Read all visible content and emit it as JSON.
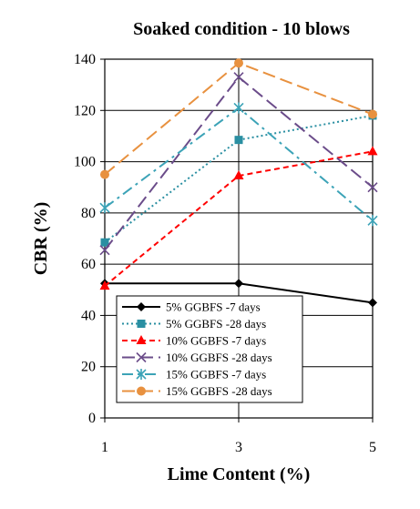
{
  "chart_data": {
    "type": "line",
    "title": "Soaked condition  - 10 blows",
    "xlabel": "Lime Content (%)",
    "ylabel": "CBR (%)",
    "x": [
      1,
      3,
      5
    ],
    "xlim": [
      1,
      5
    ],
    "ylim": [
      0,
      140
    ],
    "xticks": [
      "1",
      "3",
      "5"
    ],
    "yticks": [
      "0",
      "20",
      "40",
      "60",
      "80",
      "100",
      "120",
      "140"
    ],
    "grid": true,
    "legend_position": "lower-left",
    "series": [
      {
        "name": "5% GGBFS -7 days",
        "values": [
          52.5,
          52.5,
          45
        ],
        "color": "#000000",
        "dash": "solid",
        "marker": "diamond"
      },
      {
        "name": "5% GGBFS -28 days",
        "values": [
          68.5,
          108.5,
          118
        ],
        "color": "#2a8fa2",
        "dash": "dotted",
        "marker": "square"
      },
      {
        "name": "10% GGBFS -7 days",
        "values": [
          51.5,
          94.5,
          104
        ],
        "color": "#ff0000",
        "dash": "dashed",
        "marker": "triangle"
      },
      {
        "name": "10% GGBFS -28 days",
        "values": [
          65.5,
          133,
          90
        ],
        "color": "#6b4c8a",
        "dash": "longdash",
        "marker": "x"
      },
      {
        "name": "15% GGBFS -7 days",
        "values": [
          82,
          121,
          77
        ],
        "color": "#3ca3b7",
        "dash": "dashdot",
        "marker": "star"
      },
      {
        "name": "15% GGBFS -28 days",
        "values": [
          95,
          138.5,
          118.5
        ],
        "color": "#e8913f",
        "dash": "longdash",
        "marker": "circle"
      }
    ]
  }
}
